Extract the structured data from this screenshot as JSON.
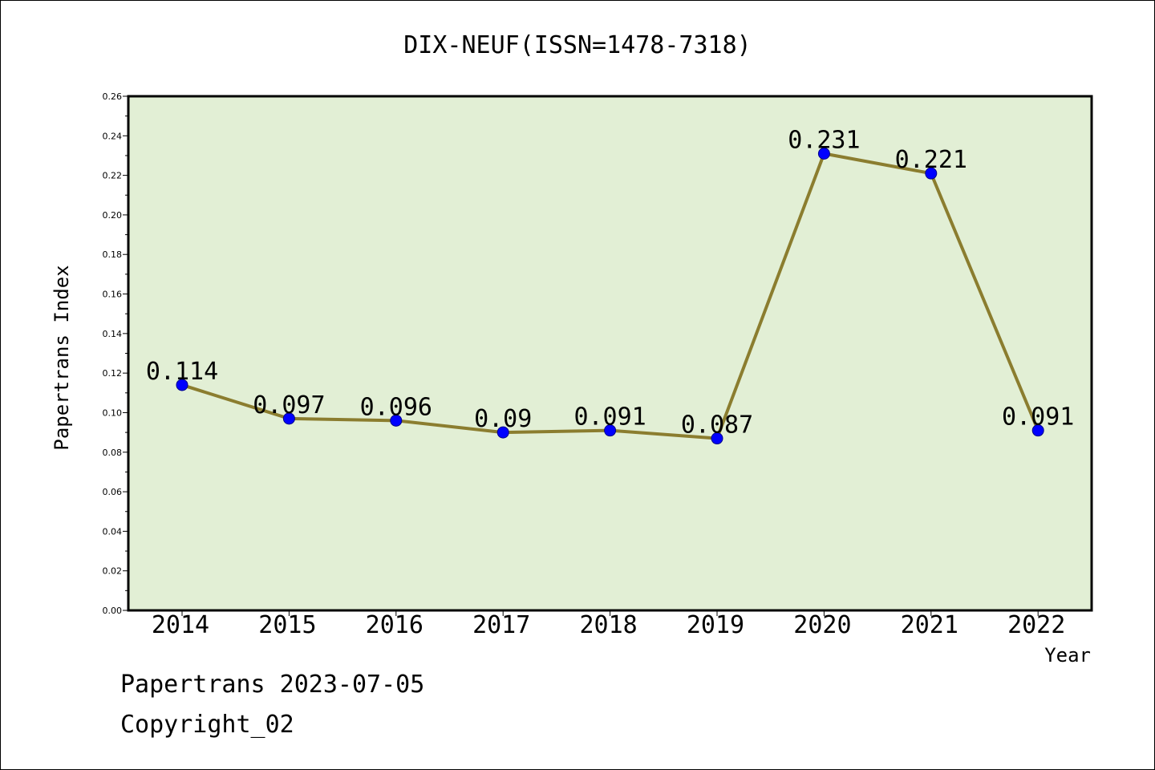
{
  "chart_data": {
    "type": "line",
    "title": "DIX-NEUF(ISSN=1478-7318)",
    "xlabel": "Year",
    "ylabel": "Papertrans Index",
    "categories": [
      "2014",
      "2015",
      "2016",
      "2017",
      "2018",
      "2019",
      "2020",
      "2021",
      "2022"
    ],
    "series": [
      {
        "values": [
          0.114,
          0.097,
          0.096,
          0.09,
          0.091,
          0.087,
          0.231,
          0.221,
          0.091
        ],
        "labels": [
          "0.114",
          "0.097",
          "0.096",
          "0.09",
          "0.091",
          "0.087",
          "0.231",
          "0.221",
          "0.091"
        ]
      }
    ],
    "ylim": [
      0,
      0.26
    ],
    "yticks": [
      "0.00",
      "0.02",
      "0.04",
      "0.06",
      "0.08",
      "0.10",
      "0.12",
      "0.14",
      "0.16",
      "0.18",
      "0.20",
      "0.22",
      "0.24",
      "0.26"
    ],
    "grid": false,
    "colors": {
      "plot_background": "#e2efd5",
      "line": "#8b7d2f",
      "marker": "#0000ff"
    }
  },
  "footer": {
    "date_line": "Papertrans 2023-07-05",
    "copyright": "Copyright_02"
  }
}
